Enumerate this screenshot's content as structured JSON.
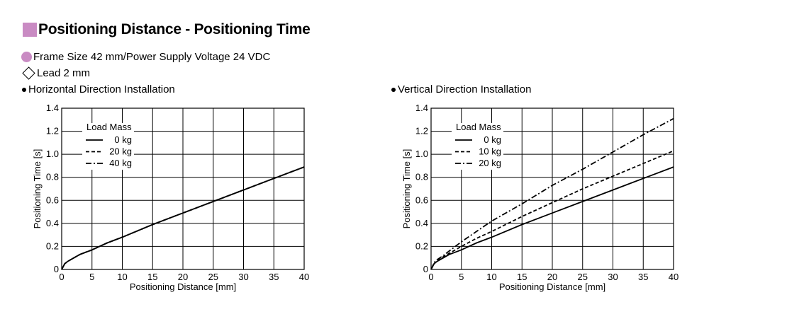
{
  "header": {
    "title": "Positioning Distance - Positioning Time",
    "frame": "Frame Size 42 mm/Power Supply Voltage 24 VDC",
    "lead": "Lead 2 mm"
  },
  "colors": {
    "accent": "#c98bc3",
    "line": "#000000"
  },
  "chart_data": [
    {
      "type": "line",
      "section": "Horizontal Direction Installation",
      "xlabel": "Positioning Distance [mm]",
      "ylabel": "Positioning Time [s]",
      "xlim": [
        0,
        40
      ],
      "ylim": [
        0,
        1.4
      ],
      "xticks": [
        0,
        5,
        10,
        15,
        20,
        25,
        30,
        35,
        40
      ],
      "yticks": [
        0,
        0.2,
        0.4,
        0.6,
        0.8,
        1.0,
        1.2,
        1.4
      ],
      "ytick_labels": [
        "0",
        "0.2",
        "0.4",
        "0.6",
        "0.8",
        "1.0",
        "1.2",
        "1.4"
      ],
      "grid": true,
      "legend_title": "Load Mass",
      "legend_position": "top-left",
      "x": [
        0,
        0.5,
        1,
        2,
        3,
        5,
        7.5,
        10,
        15,
        20,
        25,
        30,
        35,
        40
      ],
      "series": [
        {
          "name": "0 kg",
          "dash": "solid",
          "values": [
            0,
            0.05,
            0.07,
            0.1,
            0.13,
            0.17,
            0.23,
            0.28,
            0.39,
            0.49,
            0.59,
            0.69,
            0.79,
            0.89
          ]
        },
        {
          "name": "20 kg",
          "dash": "dashed",
          "values": [
            0,
            0.05,
            0.07,
            0.1,
            0.13,
            0.17,
            0.23,
            0.28,
            0.39,
            0.49,
            0.59,
            0.69,
            0.79,
            0.89
          ]
        },
        {
          "name": "40 kg",
          "dash": "dashdot",
          "values": [
            0,
            0.05,
            0.07,
            0.1,
            0.13,
            0.17,
            0.23,
            0.28,
            0.39,
            0.49,
            0.59,
            0.69,
            0.79,
            0.89
          ]
        }
      ]
    },
    {
      "type": "line",
      "section": "Vertical Direction Installation",
      "xlabel": "Positioning Distance [mm]",
      "ylabel": "Positioning Time [s]",
      "xlim": [
        0,
        40
      ],
      "ylim": [
        0,
        1.4
      ],
      "xticks": [
        0,
        5,
        10,
        15,
        20,
        25,
        30,
        35,
        40
      ],
      "yticks": [
        0,
        0.2,
        0.4,
        0.6,
        0.8,
        1.0,
        1.2,
        1.4
      ],
      "ytick_labels": [
        "0",
        "0.2",
        "0.4",
        "0.6",
        "0.8",
        "1.0",
        "1.2",
        "1.4"
      ],
      "grid": true,
      "legend_title": "Load Mass",
      "legend_position": "top-left",
      "x": [
        0,
        0.5,
        1,
        2,
        3,
        5,
        7.5,
        10,
        15,
        20,
        25,
        30,
        35,
        40
      ],
      "series": [
        {
          "name": "0 kg",
          "dash": "solid",
          "values": [
            0,
            0.05,
            0.07,
            0.1,
            0.13,
            0.17,
            0.23,
            0.28,
            0.39,
            0.49,
            0.59,
            0.69,
            0.79,
            0.89
          ]
        },
        {
          "name": "10 kg",
          "dash": "dashed",
          "values": [
            0,
            0.05,
            0.075,
            0.11,
            0.14,
            0.2,
            0.27,
            0.33,
            0.46,
            0.58,
            0.7,
            0.81,
            0.92,
            1.03
          ]
        },
        {
          "name": "20 kg",
          "dash": "dashdot",
          "values": [
            0,
            0.06,
            0.085,
            0.12,
            0.16,
            0.24,
            0.33,
            0.42,
            0.57,
            0.73,
            0.87,
            1.02,
            1.17,
            1.31
          ]
        }
      ]
    }
  ]
}
